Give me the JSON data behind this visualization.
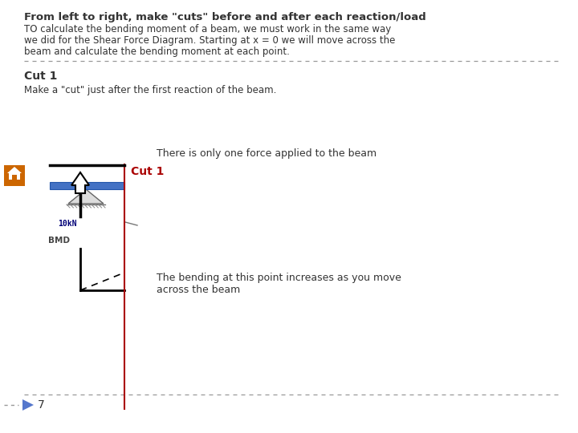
{
  "bg_color": "#ffffff",
  "title_bold": "From left to right, make \"cuts\" before and after each reaction/load",
  "body_line1": "TO calculate the bending moment of a beam, we must work in the same way",
  "body_line2": "we did for the Shear Force Diagram. Starting at x = 0 we will move across the",
  "body_line3": "beam and calculate the bending moment at each point.",
  "cut1_label": "Cut 1",
  "cut1_body": "Make a \"cut\" just after the first reaction of the beam.",
  "cut1_diagram_label": "Cut 1",
  "force_label": "10kN",
  "bmd_label": "BMD",
  "text1": "There is only one force applied to the beam",
  "text2": "The bending at this point increases as you move\nacross the beam",
  "page_num": "7",
  "dashed_color": "#999999",
  "cut_line_color": "#aa0000",
  "beam_color": "#4472c4",
  "force_color": "#000077",
  "home_bg": "#cc6600",
  "nav_color": "#5577cc",
  "text_color": "#333333"
}
